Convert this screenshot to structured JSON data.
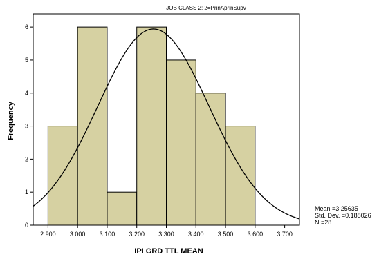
{
  "chart_data": {
    "type": "bar",
    "subtype": "histogram",
    "title": "JOB CLASS 2: 2=PrinAprinSupv",
    "xlabel": "IPI GRD TTL MEAN",
    "ylabel": "Frequency",
    "xlim": [
      2.85,
      3.75
    ],
    "ylim": [
      0,
      6.4
    ],
    "x_ticks": [
      "2.900",
      "3.000",
      "3.100",
      "3.200",
      "3.300",
      "3.400",
      "3.500",
      "3.600",
      "3.700"
    ],
    "y_ticks": [
      "0",
      "1",
      "2",
      "3",
      "4",
      "5",
      "6"
    ],
    "bin_width": 0.1,
    "bins": [
      {
        "start": 2.9,
        "count": 3
      },
      {
        "start": 3.0,
        "count": 6
      },
      {
        "start": 3.1,
        "count": 1
      },
      {
        "start": 3.2,
        "count": 6
      },
      {
        "start": 3.3,
        "count": 5
      },
      {
        "start": 3.4,
        "count": 4
      },
      {
        "start": 3.5,
        "count": 3
      }
    ],
    "normal_curve": {
      "mean": 3.25635,
      "std": 0.188026,
      "n": 28
    },
    "bar_color": "#d6d1a2",
    "plot_background": "#ffffff",
    "grid": false
  },
  "stats": {
    "mean": "Mean =3.25635",
    "std": "Std. Dev. =0.188026",
    "n": "N =28"
  }
}
